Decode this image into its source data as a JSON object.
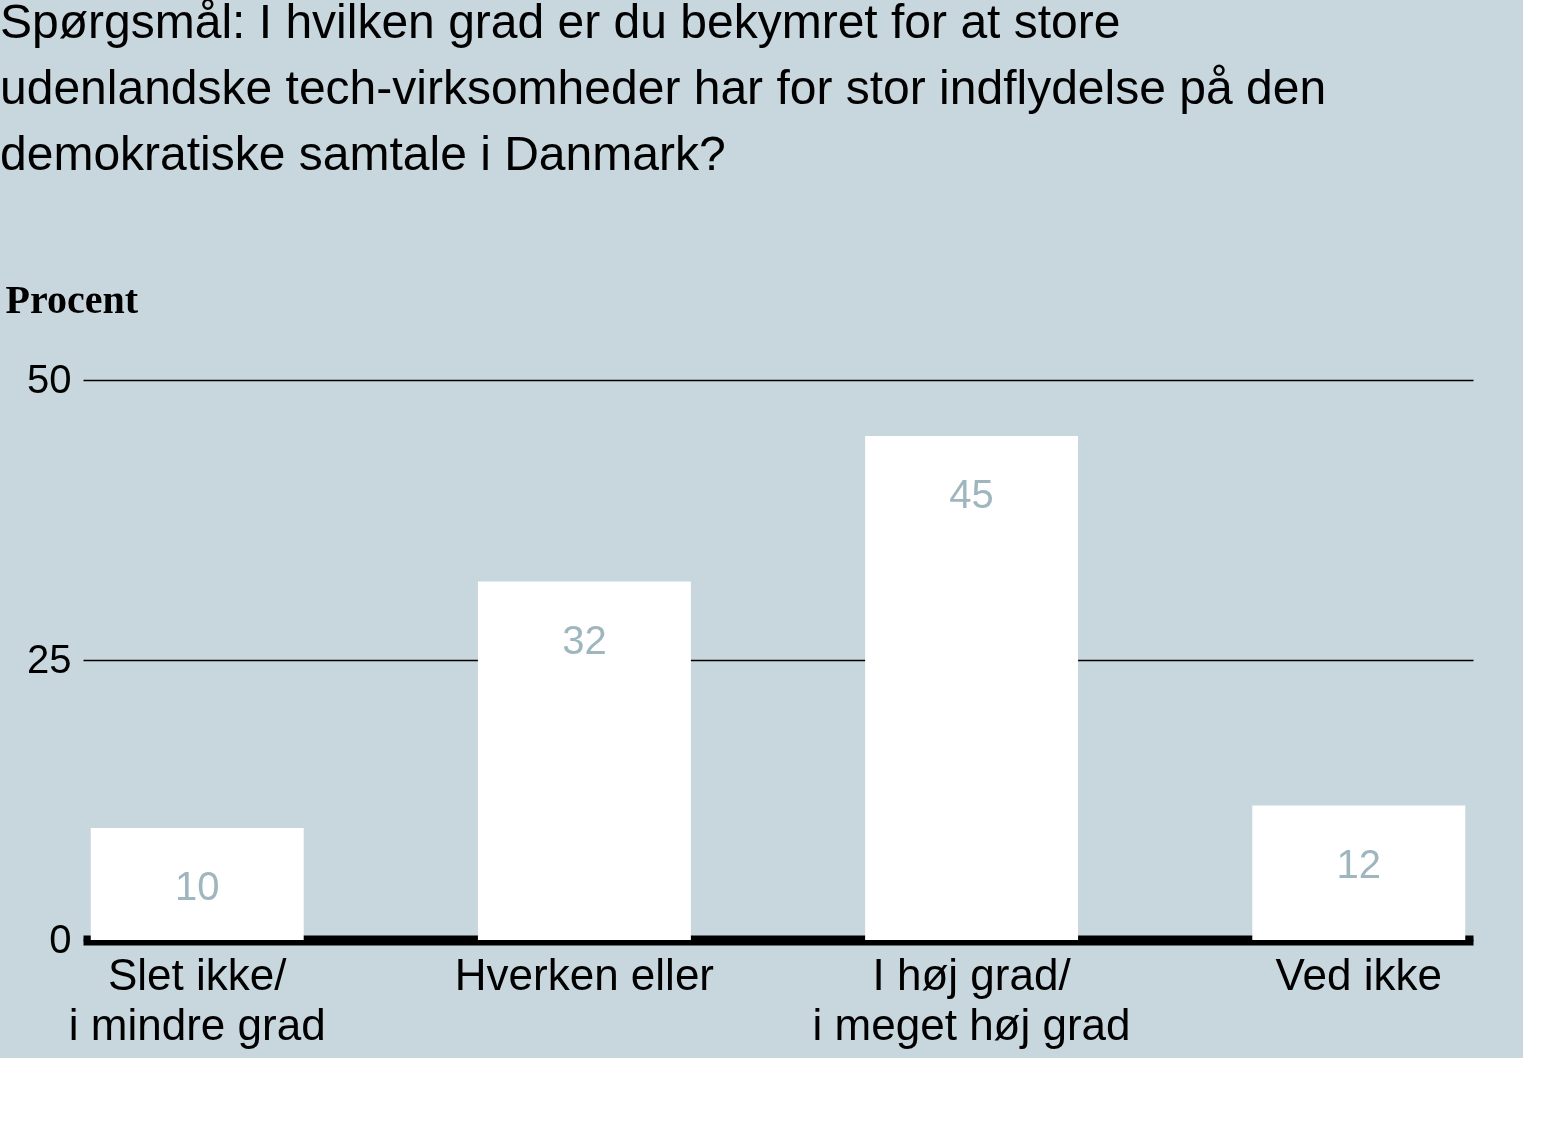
{
  "chart_data": {
    "type": "bar",
    "title": "Spørgsmål: I hvilken grad er du bekymret for at store udenlandske tech-virksomheder har for stor indflydelse på den demokratiske samtale i Danmark?",
    "ylabel": "Procent",
    "categories": [
      "Slet ikke/\ni mindre grad",
      "Hverken eller",
      "I høj grad/\ni meget høj grad",
      "Ved ikke"
    ],
    "values": [
      10,
      32,
      45,
      12
    ],
    "color": "#ffffff",
    "ylim": [
      0,
      50
    ],
    "yticks": [
      0,
      25,
      50
    ],
    "grid": "y",
    "data_labels": true
  }
}
